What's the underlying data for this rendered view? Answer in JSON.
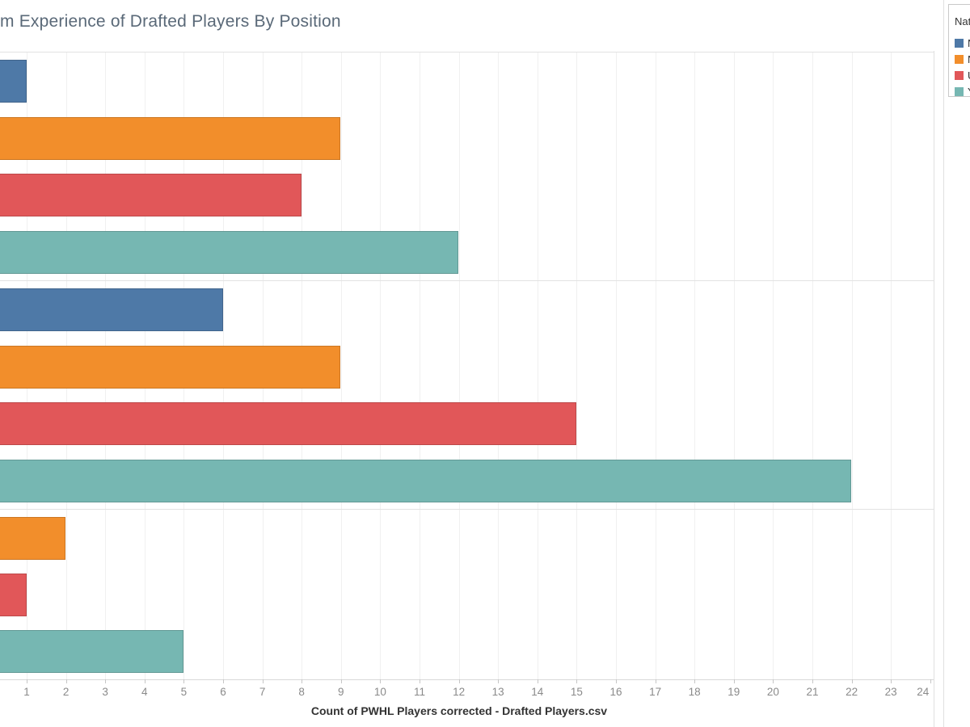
{
  "title": {
    "text": "m Experience of Drafted Players By Position"
  },
  "chart_data": {
    "type": "bar",
    "orientation": "horizontal",
    "title": "m Experience of Drafted Players By Position",
    "xlabel": "Count of PWHL Players corrected - Drafted Players.csv",
    "x_ticks": [
      1,
      2,
      3,
      4,
      5,
      6,
      7,
      8,
      9,
      10,
      11,
      12,
      13,
      14,
      15,
      16,
      17,
      18,
      19,
      20,
      21,
      22,
      23,
      24
    ],
    "xlim": [
      0,
      24
    ],
    "grid": "vertical light gray gridlines at every tick",
    "legend_position": "top-right, cropped at image edge",
    "left_edge_cropped": true,
    "series": [
      {
        "legend_label": "N",
        "color": "#4e79a7"
      },
      {
        "legend_label": "N",
        "color": "#f28e2b"
      },
      {
        "legend_label": "U",
        "color": "#e15759"
      },
      {
        "legend_label": "Y",
        "color": "#76b7b2"
      }
    ],
    "groups": [
      {
        "bars": [
          {
            "series": 0,
            "value": 1
          },
          {
            "series": 1,
            "value": 9
          },
          {
            "series": 2,
            "value": 8
          },
          {
            "series": 3,
            "value": 12
          }
        ]
      },
      {
        "bars": [
          {
            "series": 0,
            "value": 6
          },
          {
            "series": 1,
            "value": 9
          },
          {
            "series": 2,
            "value": 15
          },
          {
            "series": 3,
            "value": 22
          }
        ]
      },
      {
        "bars": [
          {
            "series": 1,
            "value": 2
          },
          {
            "series": 2,
            "value": 1
          },
          {
            "series": 3,
            "value": 5
          }
        ]
      }
    ]
  },
  "legend": {
    "title": "Nat",
    "items": [
      {
        "label": "N",
        "color": "#4e79a7"
      },
      {
        "label": "N",
        "color": "#f28e2b"
      },
      {
        "label": "U",
        "color": "#e15759"
      },
      {
        "label": "Y",
        "color": "#76b7b2"
      }
    ]
  }
}
